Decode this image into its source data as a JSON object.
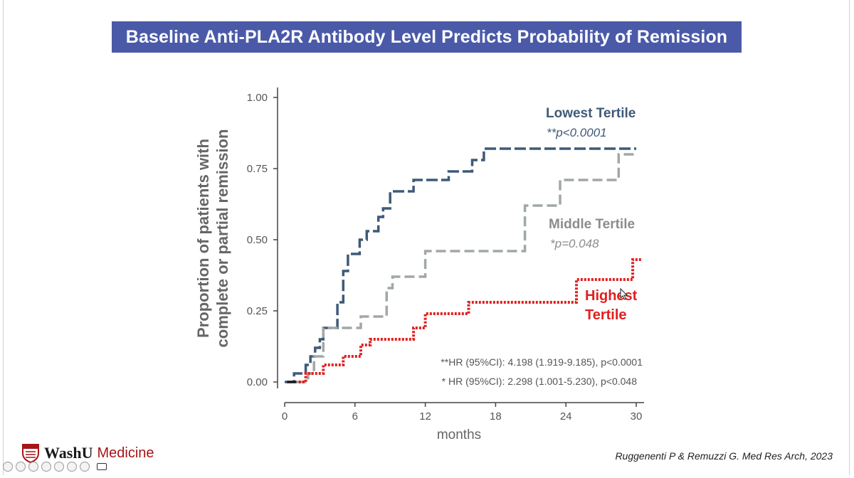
{
  "slide": {
    "title": "Baseline Anti-PLA2R Antibody Level Predicts Probability of Remission",
    "citation": "Ruggenenti P & Remuzzi G. Med Res Arch, 2023",
    "logo_word": "WashU",
    "logo_suffix": "Medicine"
  },
  "chart_data": {
    "type": "line",
    "step": true,
    "xlabel": "months",
    "ylabel_lines": [
      "Proportion of patients with",
      "complete or partial remission"
    ],
    "xlim": [
      0,
      30
    ],
    "ylim": [
      0,
      1
    ],
    "x_ticks": [
      0,
      6,
      12,
      18,
      24,
      30
    ],
    "y_ticks": [
      0.0,
      0.25,
      0.5,
      0.75,
      1.0
    ],
    "x_tick_labels": [
      "0",
      "6",
      "12",
      "18",
      "24",
      "30"
    ],
    "y_tick_labels": [
      "0.00",
      "0.25",
      "0.50",
      "0.75",
      "1.00"
    ],
    "series": [
      {
        "name": "Lowest Tertile",
        "pvalue": "**p<0.0001",
        "color": "#3f5a78",
        "dash": "16 5",
        "points": [
          [
            0,
            0
          ],
          [
            0.8,
            0
          ],
          [
            0.8,
            0.03
          ],
          [
            1.8,
            0.03
          ],
          [
            1.8,
            0.06
          ],
          [
            2.2,
            0.06
          ],
          [
            2.2,
            0.09
          ],
          [
            2.6,
            0.09
          ],
          [
            2.6,
            0.12
          ],
          [
            3.0,
            0.12
          ],
          [
            3.0,
            0.15
          ],
          [
            3.3,
            0.15
          ],
          [
            3.3,
            0.19
          ],
          [
            4.5,
            0.19
          ],
          [
            4.5,
            0.28
          ],
          [
            5.0,
            0.28
          ],
          [
            5.0,
            0.39
          ],
          [
            5.4,
            0.39
          ],
          [
            5.4,
            0.45
          ],
          [
            6.4,
            0.45
          ],
          [
            6.4,
            0.5
          ],
          [
            7.0,
            0.5
          ],
          [
            7.0,
            0.53
          ],
          [
            8.0,
            0.53
          ],
          [
            8.0,
            0.58
          ],
          [
            8.4,
            0.58
          ],
          [
            8.4,
            0.61
          ],
          [
            9.0,
            0.61
          ],
          [
            9.0,
            0.67
          ],
          [
            11.0,
            0.67
          ],
          [
            11.0,
            0.71
          ],
          [
            14.0,
            0.71
          ],
          [
            14.0,
            0.74
          ],
          [
            16.0,
            0.74
          ],
          [
            16.0,
            0.78
          ],
          [
            17.0,
            0.78
          ],
          [
            17.0,
            0.82
          ],
          [
            30.0,
            0.82
          ]
        ]
      },
      {
        "name": "Middle Tertile",
        "pvalue": "*p=0.048",
        "color": "#a0a8a6",
        "dash": "14 6",
        "points": [
          [
            1.0,
            0
          ],
          [
            2.0,
            0
          ],
          [
            2.0,
            0.03
          ],
          [
            2.5,
            0.03
          ],
          [
            2.5,
            0.09
          ],
          [
            3.3,
            0.09
          ],
          [
            3.3,
            0.19
          ],
          [
            6.5,
            0.19
          ],
          [
            6.5,
            0.23
          ],
          [
            8.7,
            0.23
          ],
          [
            8.7,
            0.33
          ],
          [
            9.2,
            0.33
          ],
          [
            9.2,
            0.37
          ],
          [
            12.0,
            0.37
          ],
          [
            12.0,
            0.46
          ],
          [
            20.5,
            0.46
          ],
          [
            20.5,
            0.62
          ],
          [
            23.5,
            0.62
          ],
          [
            23.5,
            0.71
          ],
          [
            28.5,
            0.71
          ],
          [
            28.5,
            0.8
          ],
          [
            30.0,
            0.8
          ]
        ]
      },
      {
        "name": "Highest Tertile",
        "color": "#e02020",
        "dash": "3 2",
        "points": [
          [
            1.2,
            0
          ],
          [
            1.8,
            0
          ],
          [
            1.8,
            0.03
          ],
          [
            3.3,
            0.03
          ],
          [
            3.3,
            0.06
          ],
          [
            5.0,
            0.06
          ],
          [
            5.0,
            0.09
          ],
          [
            6.5,
            0.09
          ],
          [
            6.5,
            0.13
          ],
          [
            7.3,
            0.13
          ],
          [
            7.3,
            0.15
          ],
          [
            11.0,
            0.15
          ],
          [
            11.0,
            0.19
          ],
          [
            12.0,
            0.19
          ],
          [
            12.0,
            0.24
          ],
          [
            15.7,
            0.24
          ],
          [
            15.7,
            0.28
          ],
          [
            24.9,
            0.28
          ],
          [
            24.9,
            0.36
          ],
          [
            29.7,
            0.36
          ],
          [
            29.7,
            0.43
          ],
          [
            30.5,
            0.43
          ]
        ]
      },
      {
        "name": "",
        "color": "#1a1a1a",
        "dash": "",
        "points": [
          [
            0.2,
            0
          ],
          [
            1.0,
            0
          ]
        ]
      }
    ],
    "annotations": {
      "lowest_label": "Lowest Tertile",
      "lowest_p": "**p<0.0001",
      "middle_label": "Middle Tertile",
      "middle_p": "*p=0.048",
      "highest_label_line1": "Highest",
      "highest_label_line2": "Tertile",
      "hr_line1": "**HR (95%CI): 4.198 (1.919-9.185), p<0.0001",
      "hr_line2": "* HR (95%CI): 2.298 (1.001-5.230), p<0.048"
    }
  }
}
